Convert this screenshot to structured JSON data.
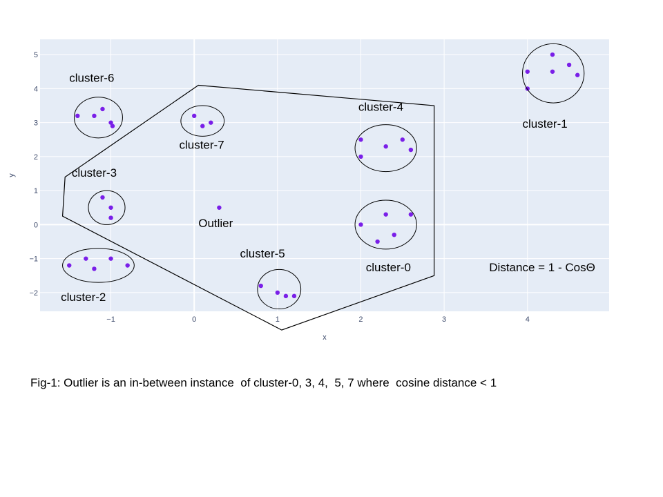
{
  "chart_data": {
    "type": "scatter",
    "xlabel": "x",
    "ylabel": "y",
    "xlim": [
      -1.85,
      4.98
    ],
    "ylim": [
      -2.55,
      5.45
    ],
    "x_ticks": [
      -1,
      0,
      1,
      2,
      3,
      4
    ],
    "y_ticks": [
      -2,
      -1,
      0,
      1,
      2,
      3,
      4,
      5
    ],
    "x_tick_labels": [
      "−1",
      "0",
      "1",
      "2",
      "3",
      "4"
    ],
    "y_tick_labels": [
      "−2",
      "−1",
      "0",
      "1",
      "2",
      "3",
      "4",
      "5"
    ],
    "grid": true,
    "colors": {
      "background": "#e5ecf6",
      "grid": "#ffffff",
      "marker": "#7a1fe8",
      "outline": "#000000"
    },
    "points": [
      {
        "x": -1.4,
        "y": 3.2
      },
      {
        "x": -1.2,
        "y": 3.2
      },
      {
        "x": -1.1,
        "y": 3.4
      },
      {
        "x": -1.0,
        "y": 3.0
      },
      {
        "x": -0.98,
        "y": 2.9
      },
      {
        "x": 0.0,
        "y": 3.2
      },
      {
        "x": 0.1,
        "y": 2.9
      },
      {
        "x": 0.2,
        "y": 3.0
      },
      {
        "x": 2.0,
        "y": 2.5
      },
      {
        "x": 2.0,
        "y": 2.0
      },
      {
        "x": 2.3,
        "y": 2.3
      },
      {
        "x": 2.5,
        "y": 2.5
      },
      {
        "x": 2.6,
        "y": 2.2
      },
      {
        "x": 4.0,
        "y": 4.5
      },
      {
        "x": 4.0,
        "y": 4.0
      },
      {
        "x": 4.3,
        "y": 5.0
      },
      {
        "x": 4.3,
        "y": 4.5
      },
      {
        "x": 4.5,
        "y": 4.7
      },
      {
        "x": 4.6,
        "y": 4.4
      },
      {
        "x": -1.1,
        "y": 0.8
      },
      {
        "x": -1.0,
        "y": 0.5
      },
      {
        "x": -1.0,
        "y": 0.2
      },
      {
        "x": 0.3,
        "y": 0.5
      },
      {
        "x": 2.0,
        "y": 0.0
      },
      {
        "x": 2.3,
        "y": 0.3
      },
      {
        "x": 2.6,
        "y": 0.3
      },
      {
        "x": 2.2,
        "y": -0.5
      },
      {
        "x": 2.4,
        "y": -0.3
      },
      {
        "x": -1.5,
        "y": -1.2
      },
      {
        "x": -1.3,
        "y": -1.0
      },
      {
        "x": -1.2,
        "y": -1.3
      },
      {
        "x": -1.0,
        "y": -1.0
      },
      {
        "x": -0.8,
        "y": -1.2
      },
      {
        "x": 0.8,
        "y": -1.8
      },
      {
        "x": 1.0,
        "y": -2.0
      },
      {
        "x": 1.1,
        "y": -2.1
      },
      {
        "x": 1.2,
        "y": -2.1
      }
    ],
    "clusters": [
      {
        "name": "cluster-6",
        "cx": -1.15,
        "cy": 3.15,
        "rx": 0.29,
        "ry": 0.6
      },
      {
        "name": "cluster-7",
        "cx": 0.1,
        "cy": 3.05,
        "rx": 0.26,
        "ry": 0.45
      },
      {
        "name": "cluster-4",
        "cx": 2.3,
        "cy": 2.25,
        "rx": 0.37,
        "ry": 0.69
      },
      {
        "name": "cluster-1",
        "cx": 4.31,
        "cy": 4.45,
        "rx": 0.37,
        "ry": 0.87
      },
      {
        "name": "cluster-3",
        "cx": -1.05,
        "cy": 0.5,
        "rx": 0.22,
        "ry": 0.5
      },
      {
        "name": "cluster-0",
        "cx": 2.3,
        "cy": 0.0,
        "rx": 0.37,
        "ry": 0.72
      },
      {
        "name": "cluster-2",
        "cx": -1.15,
        "cy": -1.2,
        "rx": 0.43,
        "ry": 0.5
      },
      {
        "name": "cluster-5",
        "cx": 1.02,
        "cy": -1.9,
        "rx": 0.26,
        "ry": 0.58
      }
    ],
    "boundary_polygon": [
      {
        "x": 0.05,
        "y": 4.1
      },
      {
        "x": 2.88,
        "y": 3.5
      },
      {
        "x": 2.88,
        "y": -1.5
      },
      {
        "x": 1.05,
        "y": -3.1
      },
      {
        "x": -1.58,
        "y": 0.25
      },
      {
        "x": -1.55,
        "y": 1.4
      }
    ],
    "annotations": [
      {
        "text": "cluster-6",
        "x": -1.5,
        "y": 4.2
      },
      {
        "text": "cluster-7",
        "x": -0.18,
        "y": 2.23
      },
      {
        "text": "cluster-4",
        "x": 1.97,
        "y": 3.35
      },
      {
        "text": "cluster-1",
        "x": 3.94,
        "y": 2.85
      },
      {
        "text": "cluster-3",
        "x": -1.47,
        "y": 1.41
      },
      {
        "text": "Outlier",
        "x": 0.05,
        "y": -0.07
      },
      {
        "text": "cluster-5",
        "x": 0.55,
        "y": -0.97
      },
      {
        "text": "cluster-0",
        "x": 2.06,
        "y": -1.37
      },
      {
        "text": "cluster-2",
        "x": -1.6,
        "y": -2.25
      },
      {
        "text": "Distance = 1 - CosΘ",
        "x": 3.54,
        "y": -1.37
      }
    ]
  },
  "caption": "Fig-1: Outlier is an in-between instance  of cluster-0, 3, 4,  5, 7 where  cosine distance < 1"
}
